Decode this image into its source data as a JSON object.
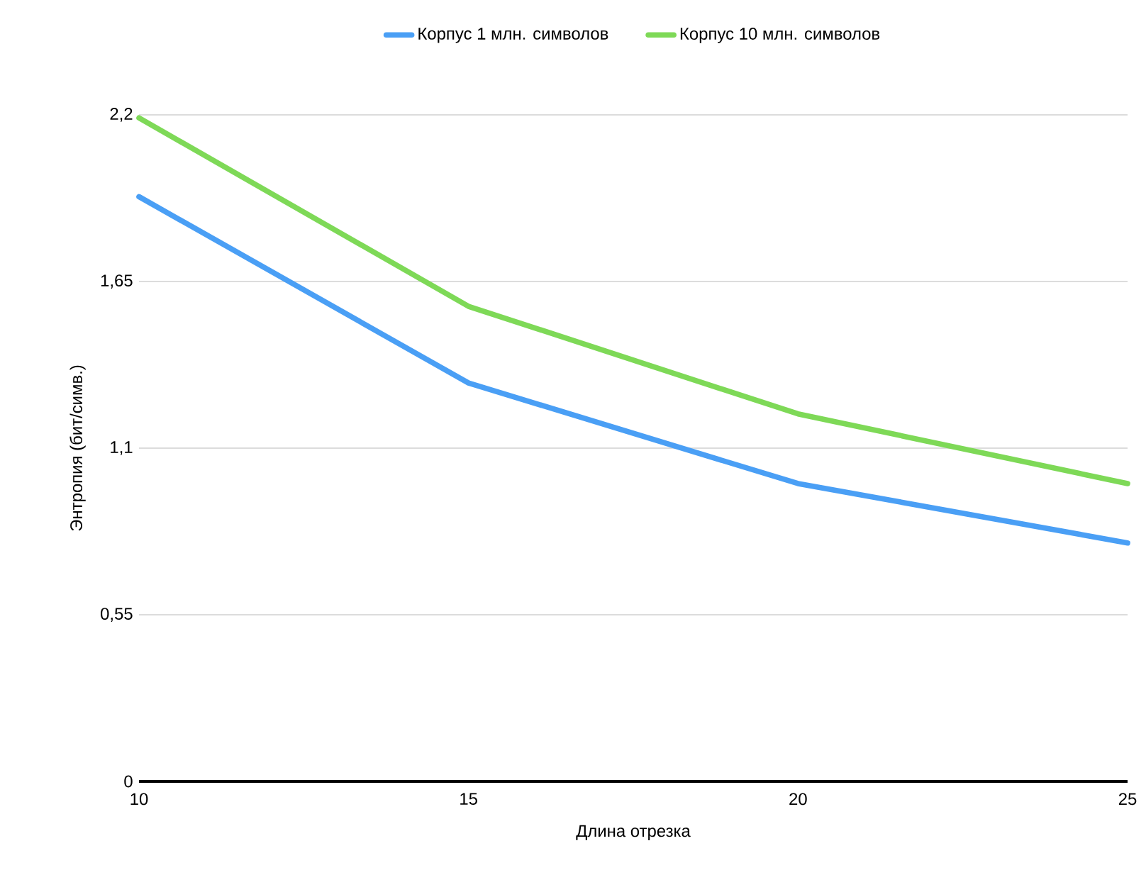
{
  "chart_data": {
    "type": "line",
    "xlabel": "Длина отрезка",
    "ylabel": "Энтропия (бит/симв.)",
    "x": [
      10,
      15,
      20,
      25
    ],
    "series": [
      {
        "name": "Корпус 1 млн. символов",
        "color": "#4a9ff5",
        "values": [
          1.93,
          1.315,
          0.983,
          0.787
        ]
      },
      {
        "name": "Корпус 10 млн. символов",
        "color": "#7ed957",
        "values": [
          2.19,
          1.568,
          1.213,
          0.983
        ]
      }
    ],
    "xlim": [
      10,
      25
    ],
    "xticks": [
      10,
      15,
      20,
      25
    ],
    "ylim": [
      0,
      2.2
    ],
    "yticks": [
      {
        "value": 0,
        "label": "0"
      },
      {
        "value": 0.55,
        "label": "0,55"
      },
      {
        "value": 1.1,
        "label": "1,1"
      },
      {
        "value": 1.65,
        "label": "1,65"
      },
      {
        "value": 2.2,
        "label": "2,2"
      }
    ],
    "grid": "y",
    "legend": "top",
    "marker": "none",
    "line_style": "solid"
  }
}
